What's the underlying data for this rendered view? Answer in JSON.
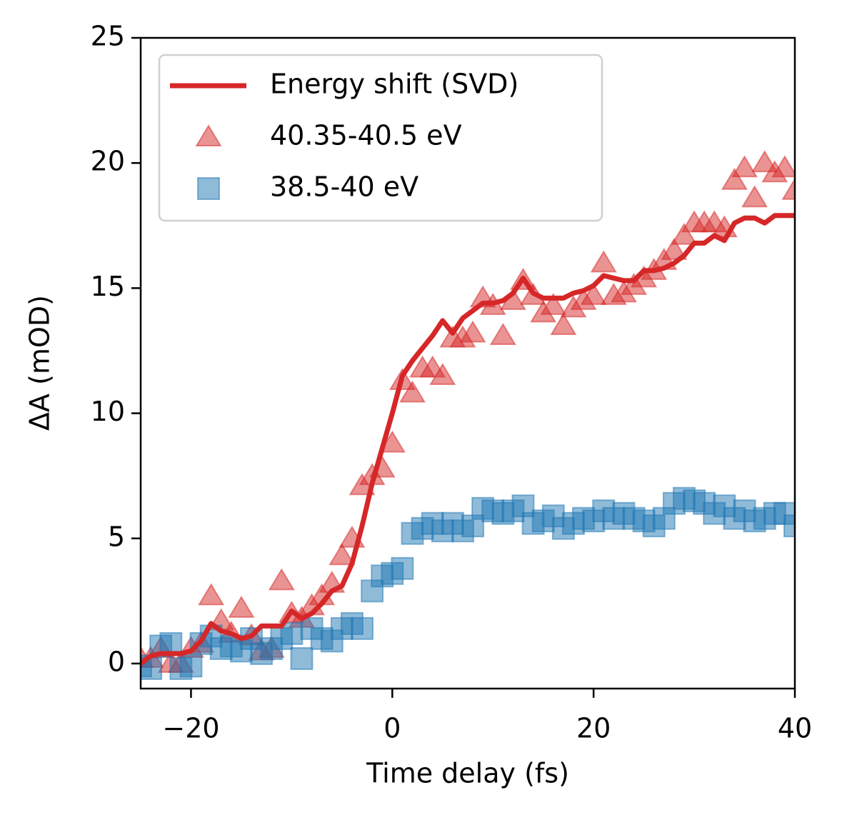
{
  "chart_data": {
    "type": "line",
    "xlabel": "Time delay (fs)",
    "ylabel": "ΔA (mOD)",
    "xlim": [
      -25,
      40
    ],
    "ylim": [
      -1,
      25
    ],
    "xticks": [
      {
        "value": -20,
        "label": "−20"
      },
      0,
      20,
      40
    ],
    "yticks": [
      0,
      5,
      10,
      15,
      20,
      25
    ],
    "legend": "upper left",
    "x": [
      -25,
      -24,
      -23,
      -22,
      -21,
      -20,
      -19,
      -18,
      -17,
      -16,
      -15,
      -14,
      -13,
      -12,
      -11,
      -10,
      -9,
      -8,
      -7,
      -6,
      -5,
      -4,
      -3,
      -2,
      -1,
      0,
      1,
      2,
      3,
      4,
      5,
      6,
      7,
      8,
      9,
      10,
      11,
      12,
      13,
      14,
      15,
      16,
      17,
      18,
      19,
      20,
      21,
      22,
      23,
      24,
      25,
      26,
      27,
      28,
      29,
      30,
      31,
      32,
      33,
      34,
      35,
      36,
      37,
      38,
      39,
      40
    ],
    "series": [
      {
        "name": "Energy shift (SVD)",
        "color": "#d62728",
        "marker": "none",
        "values": [
          0.0,
          0.3,
          0.4,
          0.4,
          0.4,
          0.5,
          0.9,
          1.6,
          1.3,
          1.2,
          1.0,
          1.1,
          1.5,
          1.5,
          1.5,
          2.1,
          1.8,
          2.0,
          2.4,
          2.9,
          3.1,
          4.0,
          5.5,
          7.2,
          8.6,
          10.0,
          11.5,
          12.1,
          12.6,
          13.1,
          13.7,
          13.2,
          13.8,
          14.1,
          14.4,
          14.4,
          14.5,
          14.8,
          15.4,
          14.8,
          14.6,
          14.6,
          14.6,
          14.8,
          14.9,
          15.1,
          15.5,
          15.4,
          15.3,
          15.3,
          15.7,
          15.7,
          15.8,
          16.0,
          16.3,
          16.8,
          16.8,
          17.1,
          16.9,
          17.6,
          17.8,
          17.8,
          17.6,
          17.9,
          17.9,
          17.9
        ]
      },
      {
        "name": "40.35-40.5 eV",
        "color": "#d62728",
        "marker": "triangle",
        "values": [
          0.2,
          0.2,
          0.6,
          0.0,
          0.0,
          0.6,
          0.8,
          2.7,
          1.7,
          1.2,
          2.2,
          1.1,
          0.5,
          0.6,
          3.3,
          2.0,
          1.8,
          2.3,
          2.7,
          3.2,
          4.3,
          5.0,
          7.1,
          7.5,
          7.8,
          8.8,
          11.3,
          10.8,
          11.8,
          11.8,
          11.5,
          13.0,
          13.0,
          13.2,
          14.6,
          14.3,
          13.1,
          14.5,
          15.3,
          14.7,
          14.0,
          14.3,
          13.5,
          14.2,
          14.5,
          14.7,
          16.0,
          14.7,
          14.8,
          15.1,
          15.4,
          15.7,
          16.1,
          16.5,
          17.1,
          17.6,
          17.6,
          17.6,
          17.4,
          19.3,
          19.8,
          18.6,
          20.0,
          19.6,
          19.8,
          18.9
        ]
      },
      {
        "name": "38.5-40 eV",
        "color": "#1f77b4",
        "marker": "square",
        "values": [
          -0.1,
          -0.2,
          0.7,
          0.8,
          -0.2,
          -0.1,
          0.8,
          1.1,
          0.6,
          0.7,
          0.5,
          1.0,
          0.4,
          0.6,
          1.0,
          1.2,
          0.2,
          1.4,
          1.0,
          0.9,
          1.4,
          1.6,
          1.4,
          2.9,
          3.5,
          3.6,
          3.8,
          5.2,
          5.4,
          5.6,
          5.3,
          5.6,
          5.3,
          5.5,
          6.2,
          6.1,
          6.0,
          6.1,
          6.3,
          5.6,
          5.7,
          5.9,
          5.4,
          5.6,
          5.8,
          5.7,
          6.1,
          5.8,
          6.0,
          5.8,
          5.7,
          5.5,
          5.8,
          6.4,
          6.6,
          6.5,
          6.4,
          6.0,
          6.3,
          5.8,
          6.1,
          5.7,
          5.8,
          6.0,
          6.0,
          5.5
        ]
      }
    ]
  }
}
